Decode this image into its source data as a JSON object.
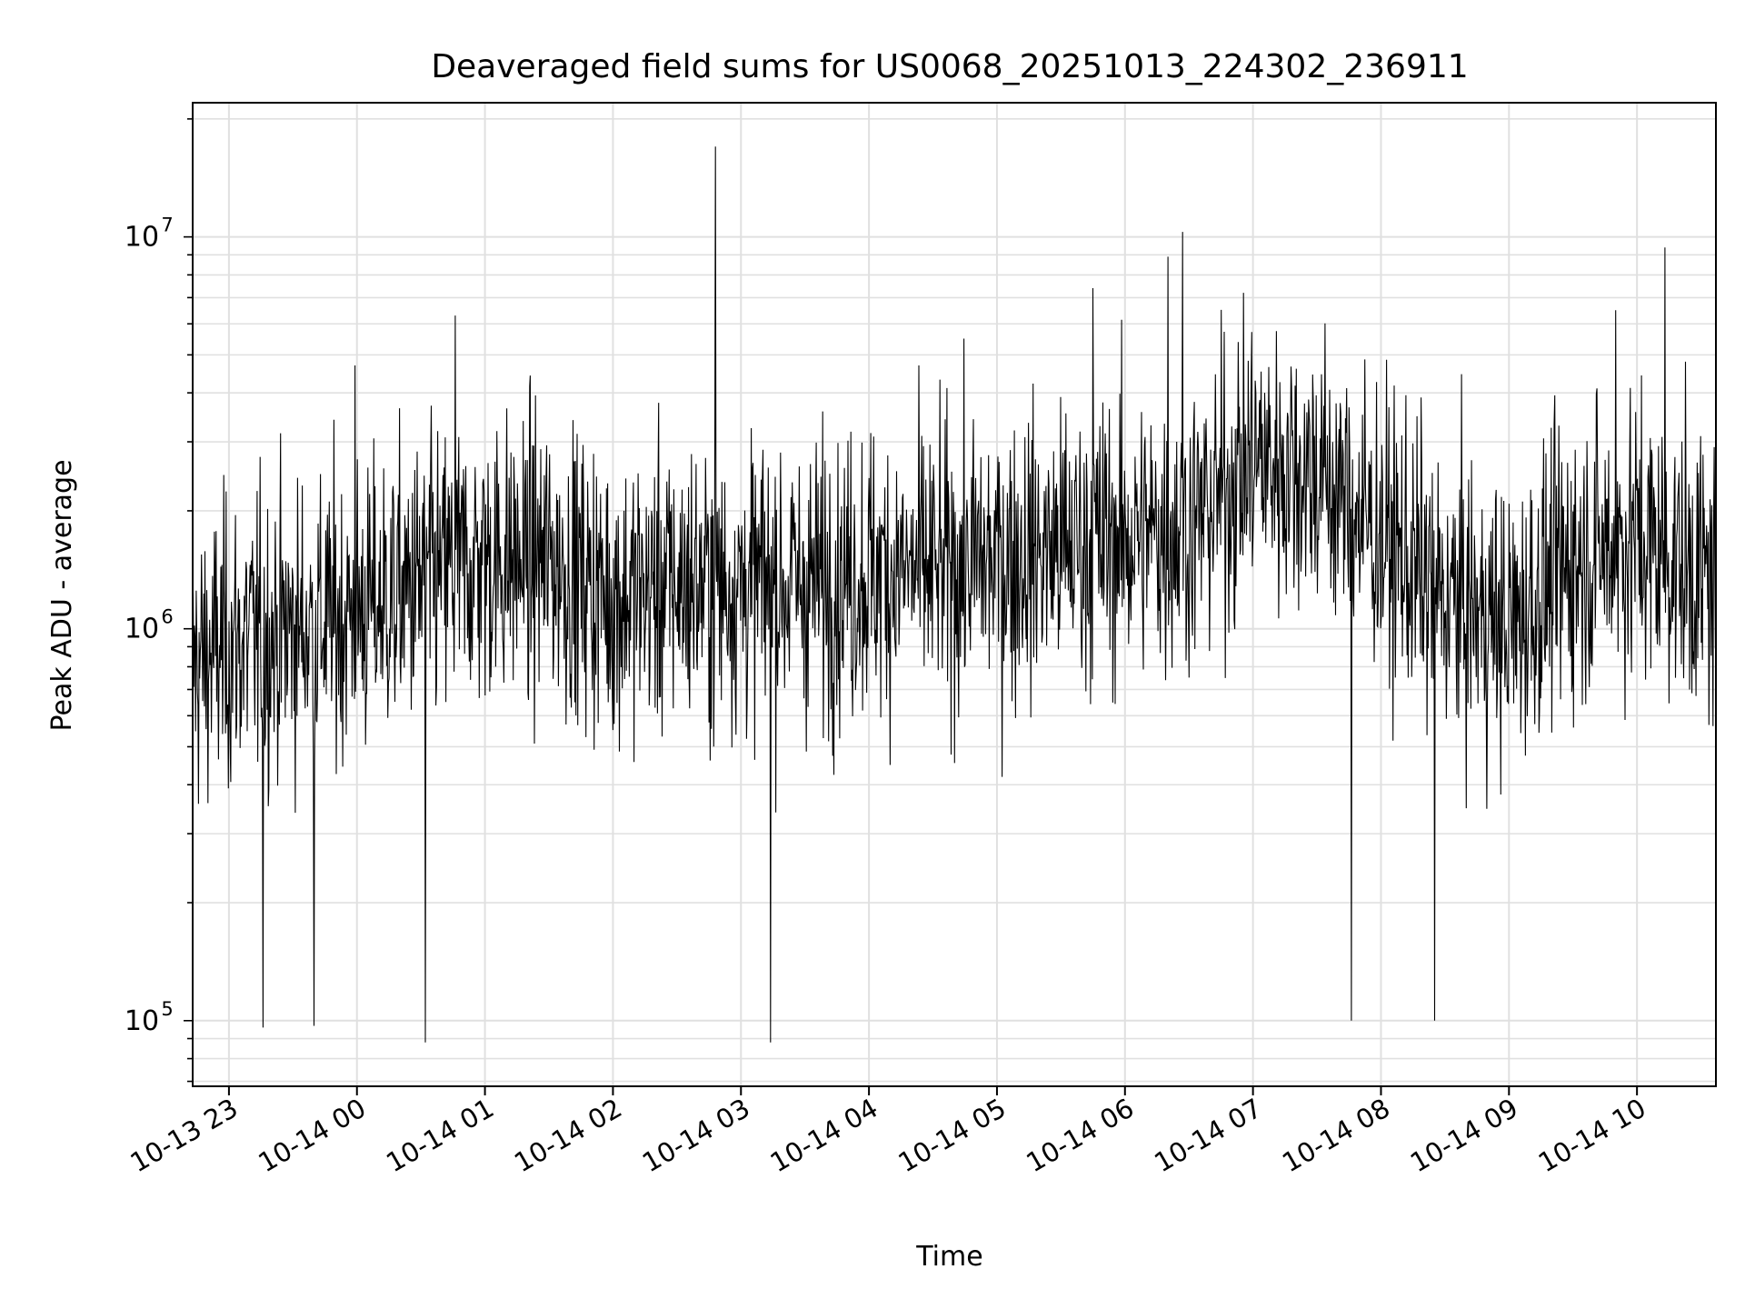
{
  "chart_data": {
    "type": "line",
    "title": "Deaveraged field sums for US0068_20251013_224302_236911",
    "xlabel": "Time",
    "ylabel": "Peak ADU - average",
    "yscale": "log",
    "ylim": [
      68000,
      22000000
    ],
    "xlim": [
      "2025-10-13 22:43",
      "2025-10-14 10:37"
    ],
    "grid": true,
    "line_color": "#000000",
    "grid_color": "#e0e0e0",
    "x_ticks": [
      {
        "value": "2025-10-13 23:00",
        "label": "10-13 23"
      },
      {
        "value": "2025-10-14 00:00",
        "label": "10-14 00"
      },
      {
        "value": "2025-10-14 01:00",
        "label": "10-14 01"
      },
      {
        "value": "2025-10-14 02:00",
        "label": "10-14 02"
      },
      {
        "value": "2025-10-14 03:00",
        "label": "10-14 03"
      },
      {
        "value": "2025-10-14 04:00",
        "label": "10-14 04"
      },
      {
        "value": "2025-10-14 05:00",
        "label": "10-14 05"
      },
      {
        "value": "2025-10-14 06:00",
        "label": "10-14 06"
      },
      {
        "value": "2025-10-14 07:00",
        "label": "10-14 07"
      },
      {
        "value": "2025-10-14 08:00",
        "label": "10-14 08"
      },
      {
        "value": "2025-10-14 09:00",
        "label": "10-14 09"
      },
      {
        "value": "2025-10-14 10:00",
        "label": "10-14 10"
      }
    ],
    "y_ticks": [
      {
        "value": 100000,
        "base": "10",
        "exp": "5"
      },
      {
        "value": 1000000,
        "base": "10",
        "exp": "6"
      },
      {
        "value": 10000000,
        "base": "10",
        "exp": "7"
      }
    ],
    "series": [
      {
        "x": [
          "2025-10-13 22:43",
          "2025-10-13 23:00",
          "2025-10-13 23:30",
          "2025-10-14 00:00",
          "2025-10-14 00:30",
          "2025-10-14 01:00",
          "2025-10-14 01:30",
          "2025-10-14 02:00",
          "2025-10-14 02:30",
          "2025-10-14 03:00",
          "2025-10-14 03:30",
          "2025-10-14 04:00",
          "2025-10-14 04:30",
          "2025-10-14 05:00",
          "2025-10-14 05:30",
          "2025-10-14 06:00",
          "2025-10-14 06:30",
          "2025-10-14 07:00",
          "2025-10-14 07:30",
          "2025-10-14 08:00",
          "2025-10-14 08:30",
          "2025-10-14 09:00",
          "2025-10-14 09:30",
          "2025-10-14 10:00",
          "2025-10-14 10:37"
        ],
        "y": [
          800000,
          900000,
          1000000,
          1100000,
          1300000,
          1500000,
          1500000,
          1200000,
          1300000,
          1300000,
          1300000,
          1400000,
          1400000,
          1500000,
          1600000,
          1700000,
          1800000,
          2700000,
          2500000,
          1700000,
          1200000,
          1000000,
          1500000,
          1700000,
          1300000
        ],
        "spikes": [
          {
            "x": "2025-10-14 02:48",
            "y": 17000000
          },
          {
            "x": "2025-10-14 06:27",
            "y": 10300000
          },
          {
            "x": "2025-10-14 10:13",
            "y": 9400000
          },
          {
            "x": "2025-10-13 23:59",
            "y": 4700000
          },
          {
            "x": "2025-10-14 00:46",
            "y": 6300000
          },
          {
            "x": "2025-10-14 05:45",
            "y": 7400000
          },
          {
            "x": "2025-10-14 06:20",
            "y": 8900000
          },
          {
            "x": "2025-10-14 09:50",
            "y": 6500000
          },
          {
            "x": "2025-10-14 00:32",
            "y": 88000
          },
          {
            "x": "2025-10-14 03:14",
            "y": 88000
          },
          {
            "x": "2025-10-13 23:16",
            "y": 96000
          },
          {
            "x": "2025-10-13 23:40",
            "y": 97000
          },
          {
            "x": "2025-10-14 07:46",
            "y": 100000
          },
          {
            "x": "2025-10-14 08:25",
            "y": 100000
          }
        ]
      }
    ]
  }
}
